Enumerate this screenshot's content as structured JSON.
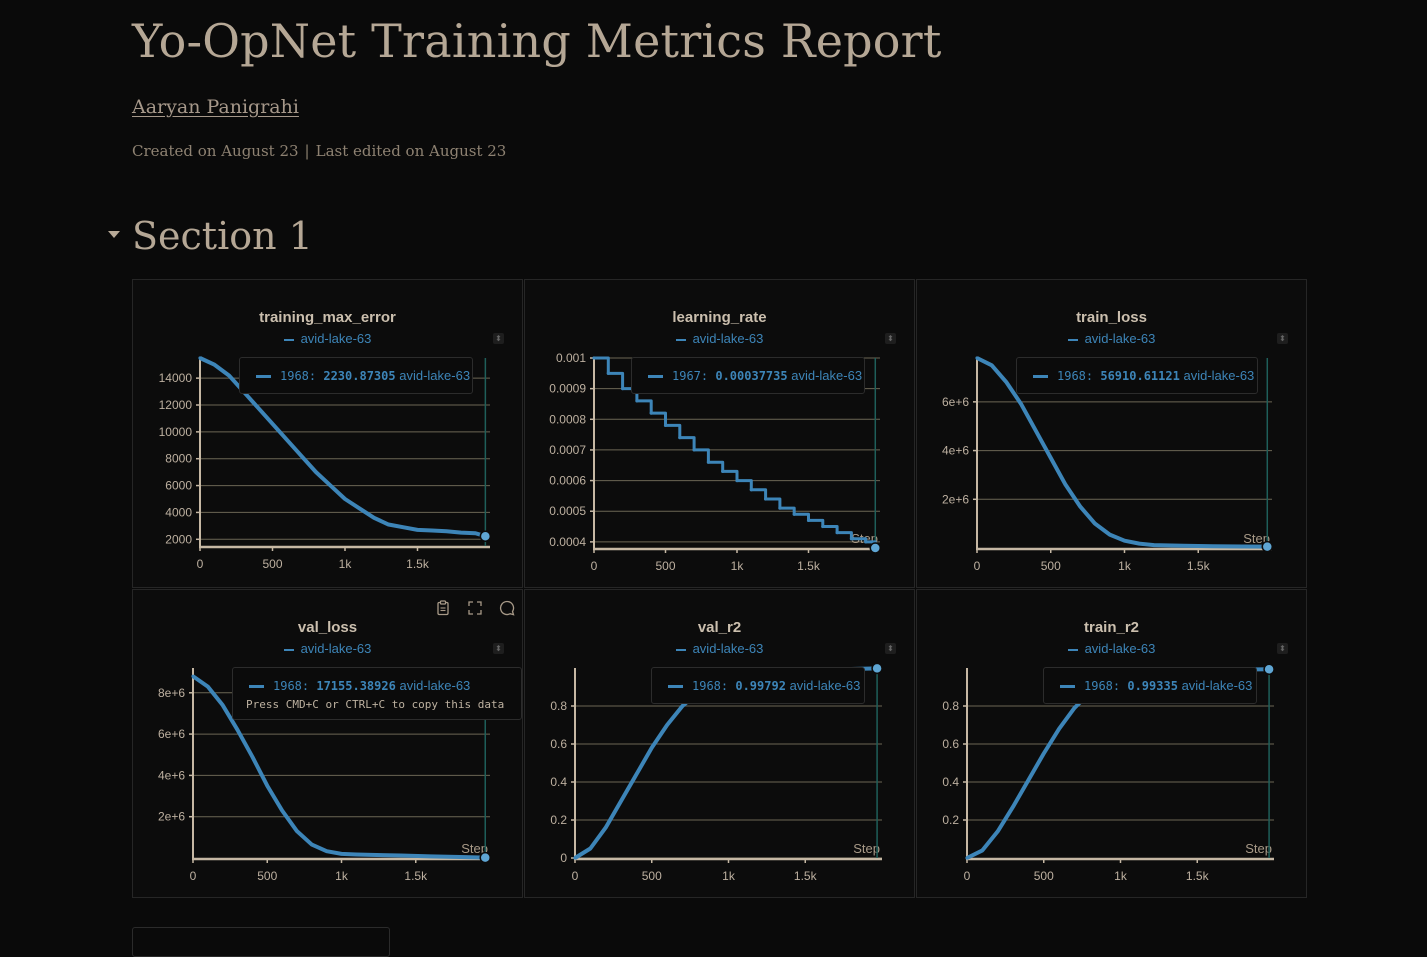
{
  "report": {
    "title": "Yo-OpNet Training Metrics Report",
    "author": "Aaryan Panigrahi",
    "created": "Created on August 23",
    "separator": "|",
    "edited": "Last edited on August 23"
  },
  "section": {
    "title": "Section 1"
  },
  "colors": {
    "series": "#3d85b8",
    "axis": "#c6b8a4",
    "grid": "#6b6654",
    "cursor": "#1f5f5a"
  },
  "panels": [
    {
      "title": "training_max_error",
      "legend": "avid-lake-63",
      "tooltip": {
        "step": "1968",
        "value": "2230.87305",
        "run": "avid-lake-63",
        "note": ""
      },
      "chart_data": {
        "type": "line",
        "x_ticks": [
          "0",
          "500",
          "1k",
          "1.5k"
        ],
        "y_ticks": [
          "2000",
          "4000",
          "6000",
          "8000",
          "10000",
          "12000",
          "14000"
        ],
        "ylim": [
          1500,
          15500
        ],
        "xlim": [
          0,
          2000
        ],
        "x_label": "",
        "series": [
          {
            "name": "avid-lake-63",
            "x": [
              0,
              100,
              200,
              300,
              400,
              500,
              600,
              700,
              800,
              900,
              1000,
              1100,
              1200,
              1300,
              1400,
              1500,
              1600,
              1700,
              1800,
              1900,
              1968
            ],
            "y": [
              15500,
              15000,
              14200,
              13000,
              11800,
              10600,
              9400,
              8200,
              7000,
              6000,
              5000,
              4300,
              3600,
              3100,
              2900,
              2700,
              2650,
              2600,
              2500,
              2450,
              2230
            ]
          }
        ]
      }
    },
    {
      "title": "learning_rate",
      "legend": "avid-lake-63",
      "tooltip": {
        "step": "1967",
        "value": "0.00037735",
        "run": "avid-lake-63",
        "note": ""
      },
      "chart_data": {
        "type": "line",
        "step": true,
        "x_ticks": [
          "0",
          "500",
          "1k",
          "1.5k"
        ],
        "y_ticks": [
          "0.0004",
          "0.0005",
          "0.0006",
          "0.0007",
          "0.0008",
          "0.0009",
          "0.001"
        ],
        "ylim": [
          0.00038,
          0.001
        ],
        "xlim": [
          0,
          2000
        ],
        "x_label": "Step",
        "series": [
          {
            "name": "avid-lake-63",
            "x": [
              0,
              100,
              200,
              300,
              400,
              500,
              600,
              700,
              800,
              900,
              1000,
              1100,
              1200,
              1300,
              1400,
              1500,
              1600,
              1700,
              1800,
              1900,
              1967
            ],
            "y": [
              0.001,
              0.00095,
              0.0009,
              0.00086,
              0.00082,
              0.00078,
              0.00074,
              0.0007,
              0.00066,
              0.00063,
              0.0006,
              0.00057,
              0.00054,
              0.00051,
              0.00049,
              0.00047,
              0.00045,
              0.00043,
              0.00041,
              0.0004,
              0.00037735
            ]
          }
        ]
      }
    },
    {
      "title": "train_loss",
      "legend": "avid-lake-63",
      "tooltip": {
        "step": "1968",
        "value": "56910.61121",
        "run": "avid-lake-63",
        "note": ""
      },
      "chart_data": {
        "type": "line",
        "x_ticks": [
          "0",
          "500",
          "1k",
          "1.5k"
        ],
        "y_ticks": [
          "2e+6",
          "4e+6",
          "6e+6"
        ],
        "ylim": [
          0,
          7800000
        ],
        "xlim": [
          0,
          2000
        ],
        "x_label": "Step",
        "series": [
          {
            "name": "avid-lake-63",
            "x": [
              0,
              100,
              200,
              300,
              400,
              500,
              600,
              700,
              800,
              900,
              1000,
              1100,
              1200,
              1400,
              1600,
              1800,
              1968
            ],
            "y": [
              7800000,
              7500000,
              6800000,
              5900000,
              4800000,
              3700000,
              2600000,
              1700000,
              1000000,
              550000,
              300000,
              180000,
              120000,
              90000,
              70000,
              60000,
              56910
            ]
          }
        ]
      }
    },
    {
      "title": "val_loss",
      "legend": "avid-lake-63",
      "tooltip": {
        "step": "1968",
        "value": "17155.38926",
        "run": "avid-lake-63",
        "note": "Press CMD+C or CTRL+C to copy this data"
      },
      "chart_data": {
        "type": "line",
        "x_ticks": [
          "0",
          "500",
          "1k",
          "1.5k"
        ],
        "y_ticks": [
          "2e+6",
          "4e+6",
          "6e+6",
          "8e+6"
        ],
        "ylim": [
          0,
          9200000
        ],
        "xlim": [
          0,
          2000
        ],
        "x_label": "Step",
        "series": [
          {
            "name": "avid-lake-63",
            "x": [
              0,
              100,
              200,
              300,
              400,
              500,
              600,
              700,
              800,
              900,
              1000,
              1100,
              1200,
              1400,
              1600,
              1800,
              1968
            ],
            "y": [
              8800000,
              8300000,
              7400000,
              6200000,
              4900000,
              3500000,
              2300000,
              1300000,
              650000,
              330000,
              200000,
              170000,
              150000,
              120000,
              80000,
              50000,
              17155
            ]
          }
        ]
      }
    },
    {
      "title": "val_r2",
      "legend": "avid-lake-63",
      "tooltip": {
        "step": "1968",
        "value": "0.99792",
        "run": "avid-lake-63",
        "note": ""
      },
      "chart_data": {
        "type": "line",
        "x_ticks": [
          "0",
          "500",
          "1k",
          "1.5k"
        ],
        "y_ticks": [
          "0",
          "0.2",
          "0.4",
          "0.6",
          "0.8"
        ],
        "ylim": [
          0,
          1
        ],
        "xlim": [
          0,
          2000
        ],
        "x_label": "Step",
        "series": [
          {
            "name": "avid-lake-63",
            "x": [
              0,
              100,
              200,
              300,
              400,
              500,
              600,
              700,
              800,
              900,
              1000,
              1200,
              1400,
              1600,
              1800,
              1968
            ],
            "y": [
              0,
              0.05,
              0.16,
              0.3,
              0.44,
              0.58,
              0.7,
              0.8,
              0.87,
              0.92,
              0.95,
              0.975,
              0.985,
              0.99,
              0.995,
              0.99792
            ]
          }
        ]
      }
    },
    {
      "title": "train_r2",
      "legend": "avid-lake-63",
      "tooltip": {
        "step": "1968",
        "value": "0.99335",
        "run": "avid-lake-63",
        "note": ""
      },
      "chart_data": {
        "type": "line",
        "x_ticks": [
          "0",
          "500",
          "1k",
          "1.5k"
        ],
        "y_ticks": [
          "0.2",
          "0.4",
          "0.6",
          "0.8"
        ],
        "ylim": [
          0,
          1
        ],
        "xlim": [
          0,
          2000
        ],
        "x_label": "Step",
        "series": [
          {
            "name": "avid-lake-63",
            "x": [
              0,
              100,
              200,
              300,
              400,
              500,
              600,
              700,
              800,
              900,
              1000,
              1200,
              1400,
              1600,
              1800,
              1968
            ],
            "y": [
              0,
              0.04,
              0.14,
              0.27,
              0.41,
              0.55,
              0.68,
              0.79,
              0.87,
              0.92,
              0.95,
              0.975,
              0.985,
              0.99,
              0.992,
              0.99335
            ]
          }
        ]
      }
    }
  ]
}
